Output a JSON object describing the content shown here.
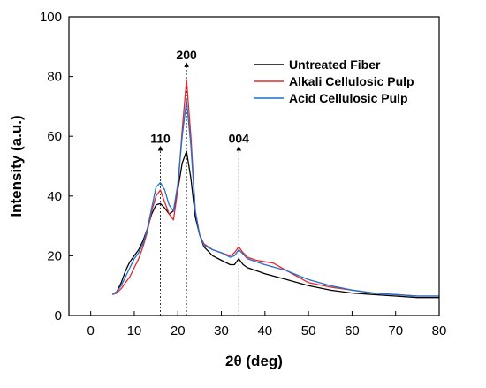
{
  "chart_data": {
    "type": "line",
    "xlabel": "2θ (deg)",
    "ylabel": "Intensity (a.u.)",
    "xlim": [
      -5,
      80
    ],
    "ylim": [
      0,
      100
    ],
    "x_ticks": [
      0,
      10,
      20,
      30,
      40,
      50,
      60,
      70,
      80
    ],
    "y_ticks": [
      0,
      20,
      40,
      60,
      80,
      100
    ],
    "grid": false,
    "legend_position": "top-right",
    "series": [
      {
        "name": "Untreated Fiber",
        "color": "#000000",
        "points": [
          [
            5,
            7
          ],
          [
            6,
            8
          ],
          [
            7,
            11
          ],
          [
            8,
            15
          ],
          [
            9,
            18
          ],
          [
            10,
            20
          ],
          [
            11,
            22
          ],
          [
            12,
            25
          ],
          [
            13,
            29
          ],
          [
            14,
            34
          ],
          [
            15,
            37
          ],
          [
            16,
            37.5
          ],
          [
            17,
            36
          ],
          [
            18,
            34
          ],
          [
            19,
            35
          ],
          [
            20,
            42
          ],
          [
            21,
            51
          ],
          [
            22,
            55
          ],
          [
            23,
            46
          ],
          [
            24,
            33
          ],
          [
            25,
            27
          ],
          [
            26,
            23
          ],
          [
            28,
            20
          ],
          [
            30,
            18.5
          ],
          [
            32,
            17
          ],
          [
            33,
            17
          ],
          [
            34,
            19
          ],
          [
            35,
            17
          ],
          [
            36,
            16
          ],
          [
            38,
            15
          ],
          [
            40,
            14
          ],
          [
            45,
            12
          ],
          [
            50,
            10
          ],
          [
            55,
            8.5
          ],
          [
            60,
            7.5
          ],
          [
            65,
            7
          ],
          [
            70,
            6.5
          ],
          [
            75,
            6
          ],
          [
            80,
            6
          ]
        ]
      },
      {
        "name": "Alkali Cellulosic Pulp",
        "color": "#e8262a",
        "points": [
          [
            5,
            7
          ],
          [
            6,
            7.5
          ],
          [
            7,
            9
          ],
          [
            8,
            11
          ],
          [
            9,
            13
          ],
          [
            10,
            16
          ],
          [
            11,
            19
          ],
          [
            12,
            23
          ],
          [
            13,
            28
          ],
          [
            14,
            35
          ],
          [
            15,
            40
          ],
          [
            16,
            42
          ],
          [
            17,
            38
          ],
          [
            18,
            34
          ],
          [
            19,
            32
          ],
          [
            20,
            42
          ],
          [
            21,
            62
          ],
          [
            22,
            79
          ],
          [
            23,
            60
          ],
          [
            24,
            35
          ],
          [
            25,
            27
          ],
          [
            26,
            24
          ],
          [
            28,
            22
          ],
          [
            30,
            21
          ],
          [
            32,
            20
          ],
          [
            33,
            21
          ],
          [
            34,
            23
          ],
          [
            35,
            21
          ],
          [
            36,
            19.5
          ],
          [
            38,
            18.5
          ],
          [
            40,
            18
          ],
          [
            42,
            17.5
          ],
          [
            45,
            15
          ],
          [
            50,
            11
          ],
          [
            55,
            9.5
          ],
          [
            60,
            8.5
          ],
          [
            65,
            7.5
          ],
          [
            70,
            7
          ],
          [
            75,
            6.5
          ],
          [
            80,
            6.5
          ]
        ]
      },
      {
        "name": "Acid Cellulosic Pulp",
        "color": "#1f6fd1",
        "points": [
          [
            5,
            7
          ],
          [
            6,
            8
          ],
          [
            7,
            10
          ],
          [
            8,
            13
          ],
          [
            9,
            16
          ],
          [
            10,
            19
          ],
          [
            11,
            21
          ],
          [
            12,
            24
          ],
          [
            13,
            29
          ],
          [
            14,
            36
          ],
          [
            15,
            43
          ],
          [
            16,
            44.5
          ],
          [
            17,
            42
          ],
          [
            18,
            37
          ],
          [
            19,
            35
          ],
          [
            20,
            44
          ],
          [
            21,
            60
          ],
          [
            22,
            72
          ],
          [
            23,
            57
          ],
          [
            24,
            35
          ],
          [
            25,
            27
          ],
          [
            26,
            23.5
          ],
          [
            28,
            22
          ],
          [
            30,
            21
          ],
          [
            32,
            19.5
          ],
          [
            33,
            20
          ],
          [
            34,
            22
          ],
          [
            35,
            20.5
          ],
          [
            36,
            19
          ],
          [
            38,
            18
          ],
          [
            40,
            17
          ],
          [
            45,
            15
          ],
          [
            50,
            12
          ],
          [
            55,
            10
          ],
          [
            60,
            8.5
          ],
          [
            65,
            7.5
          ],
          [
            70,
            7
          ],
          [
            75,
            6.5
          ],
          [
            80,
            6.5
          ]
        ]
      }
    ],
    "annotations": [
      {
        "label": "110",
        "x": 16,
        "y_from": 0,
        "y_to": 56
      },
      {
        "label": "200",
        "x": 22,
        "y_from": 0,
        "y_to": 84
      },
      {
        "label": "004",
        "x": 34,
        "y_from": 0,
        "y_to": 56
      }
    ]
  }
}
